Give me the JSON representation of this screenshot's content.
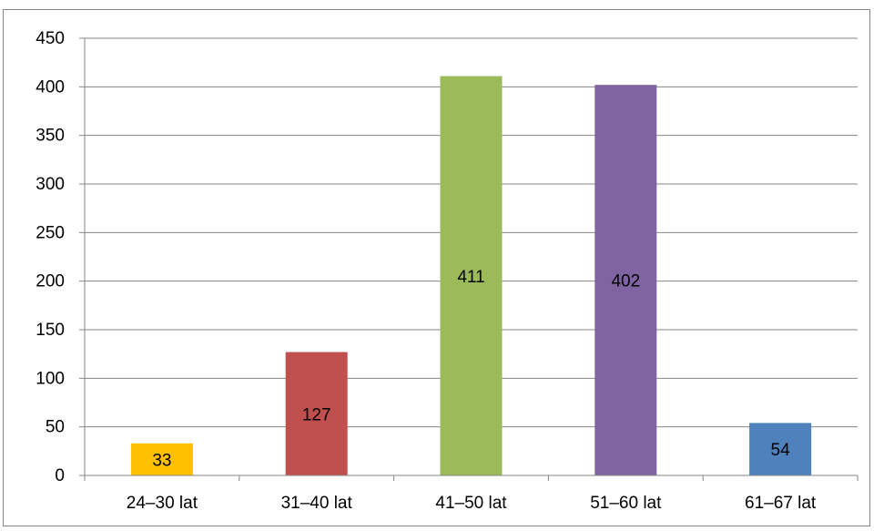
{
  "chart_data": {
    "type": "bar",
    "title": "",
    "xlabel": "",
    "ylabel": "",
    "categories": [
      "24–30 lat",
      "31–40 lat",
      "41–50 lat",
      "51–60 lat",
      "61–67 lat"
    ],
    "values": [
      33,
      127,
      411,
      402,
      54
    ],
    "data_labels": [
      "33",
      "127",
      "411",
      "402",
      "54"
    ],
    "colors": [
      "#FFC000",
      "#C0504D",
      "#9BBB59",
      "#8064A2",
      "#4F81BD"
    ],
    "ylim": [
      0,
      450
    ],
    "yticks": [
      0,
      50,
      100,
      150,
      200,
      250,
      300,
      350,
      400,
      450
    ],
    "grid": true,
    "gridline_color": "#868686",
    "legend": "none"
  }
}
